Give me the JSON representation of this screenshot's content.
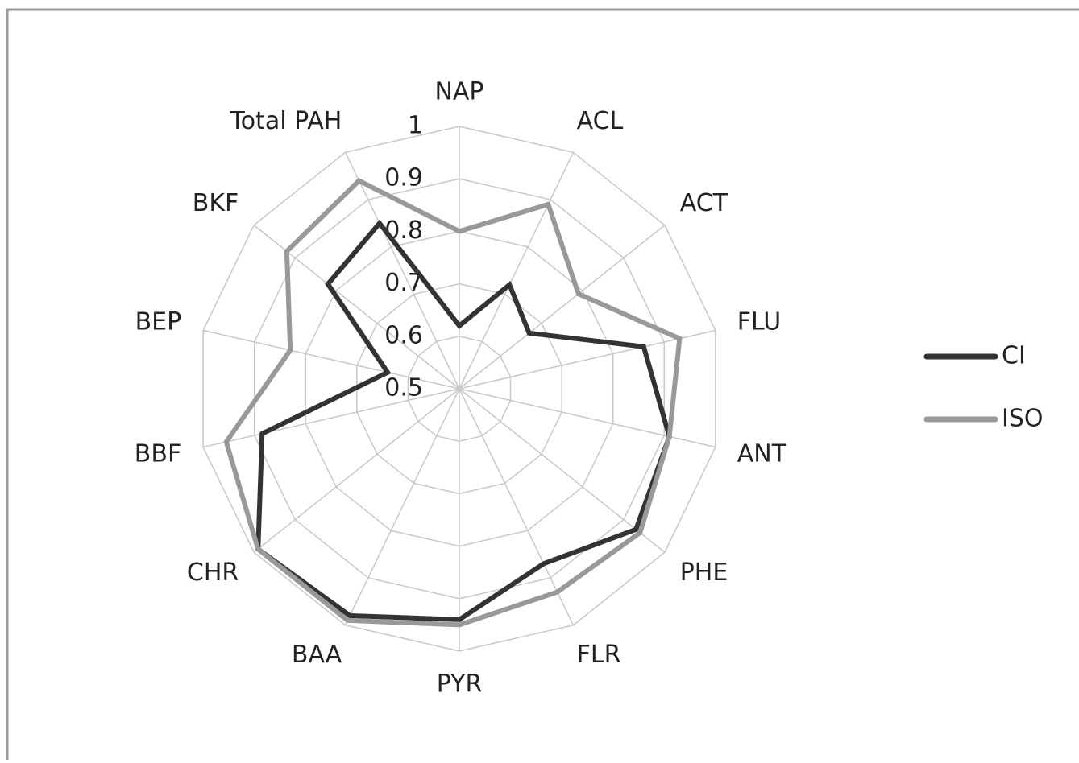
{
  "chart_data": {
    "type": "radar",
    "categories": [
      "NAP",
      "ACL",
      "ACT",
      "FLU",
      "ANT",
      "PHE",
      "FLR",
      "PYR",
      "BAA",
      "CHR",
      "BBF",
      "BEP",
      "BKF",
      "Total PAH"
    ],
    "series": [
      {
        "name": "CI",
        "color": "#333333",
        "values": [
          0.62,
          0.72,
          0.67,
          0.86,
          0.91,
          0.93,
          0.87,
          0.94,
          0.98,
          0.99,
          0.885,
          0.64,
          0.82,
          0.85
        ]
      },
      {
        "name": "ISO",
        "color": "#999999",
        "values": [
          0.8,
          0.89,
          0.79,
          0.93,
          0.91,
          0.94,
          0.93,
          0.95,
          0.99,
          0.99,
          0.955,
          0.83,
          0.92,
          0.94
        ]
      }
    ],
    "ylim": [
      0.5,
      1
    ],
    "yticks": [
      0.5,
      0.6,
      0.7,
      0.8,
      0.9,
      1
    ],
    "grid": true,
    "legend": "right"
  }
}
